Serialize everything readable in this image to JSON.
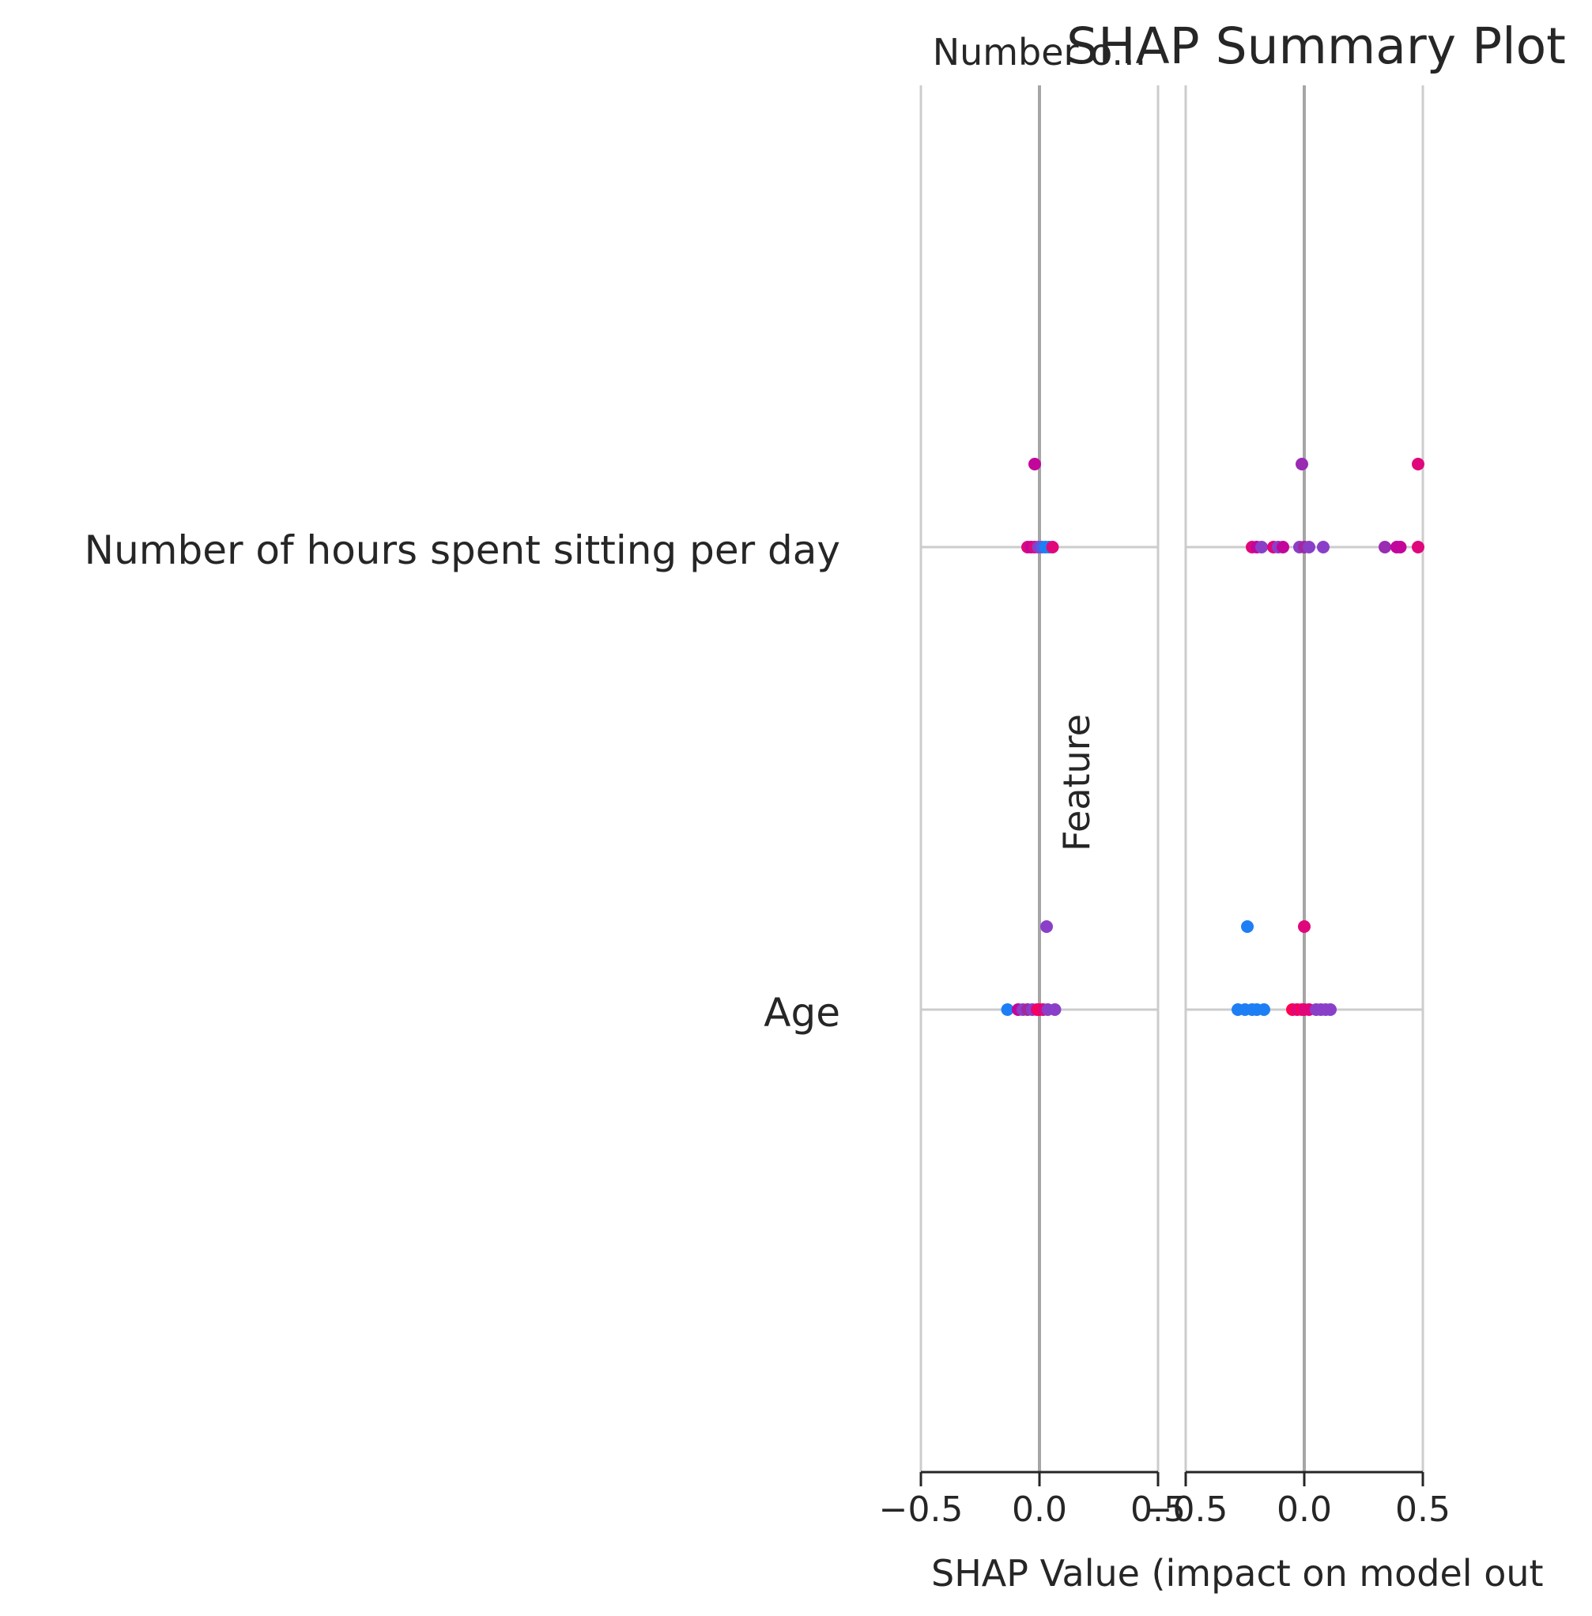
{
  "chart_data": {
    "type": "scatter",
    "title": "SHAP Summary Plot",
    "panel_titles": [
      "Number o...",
      ""
    ],
    "xlabel": "SHAP Value (impact on model out",
    "ylabel": "Feature",
    "features": [
      "Number of hours spent sitting per day",
      "Age"
    ],
    "xlim": [
      -0.5,
      0.5
    ],
    "xticks": [
      -0.5,
      0.0,
      0.5
    ],
    "xtick_labels": [
      "−0.5",
      "0.0",
      "0.5"
    ],
    "grid": true,
    "panels": [
      {
        "points": [
          {
            "feature": "Number of hours spent sitting per day",
            "x": -0.02,
            "offset": 1,
            "color": "#c2069b"
          },
          {
            "feature": "Number of hours spent sitting per day",
            "x": -0.05,
            "offset": 0,
            "color": "#e0077c"
          },
          {
            "feature": "Number of hours spent sitting per day",
            "x": -0.035,
            "offset": 0,
            "color": "#c2069b"
          },
          {
            "feature": "Number of hours spent sitting per day",
            "x": -0.02,
            "offset": 0,
            "color": "#e0077c"
          },
          {
            "feature": "Number of hours spent sitting per day",
            "x": -0.005,
            "offset": 0,
            "color": "#8a3fc9"
          },
          {
            "feature": "Number of hours spent sitting per day",
            "x": 0.01,
            "offset": 0,
            "color": "#5b5be0"
          },
          {
            "feature": "Number of hours spent sitting per day",
            "x": 0.025,
            "offset": 0,
            "color": "#1e7ff5"
          },
          {
            "feature": "Number of hours spent sitting per day",
            "x": 0.04,
            "offset": 0,
            "color": "#1e7ff5"
          },
          {
            "feature": "Number of hours spent sitting per day",
            "x": 0.055,
            "offset": 0,
            "color": "#e0077c"
          },
          {
            "feature": "Age",
            "x": 0.03,
            "offset": 1,
            "color": "#8a3fc9"
          },
          {
            "feature": "Age",
            "x": -0.135,
            "offset": 0,
            "color": "#1e7ff5"
          },
          {
            "feature": "Age",
            "x": -0.09,
            "offset": 0,
            "color": "#c2069b"
          },
          {
            "feature": "Age",
            "x": -0.07,
            "offset": 0,
            "color": "#8a3fc9"
          },
          {
            "feature": "Age",
            "x": -0.05,
            "offset": 0,
            "color": "#a3289f"
          },
          {
            "feature": "Age",
            "x": -0.03,
            "offset": 0,
            "color": "#8a3fc9"
          },
          {
            "feature": "Age",
            "x": -0.01,
            "offset": 0,
            "color": "#e0077c"
          },
          {
            "feature": "Age",
            "x": 0.0,
            "offset": 0,
            "color": "#ff0052"
          },
          {
            "feature": "Age",
            "x": 0.015,
            "offset": 0,
            "color": "#e0077c"
          },
          {
            "feature": "Age",
            "x": 0.035,
            "offset": 0,
            "color": "#8a3fc9"
          },
          {
            "feature": "Age",
            "x": 0.065,
            "offset": 0,
            "color": "#8a3fc9"
          }
        ]
      },
      {
        "points": [
          {
            "feature": "Number of hours spent sitting per day",
            "x": -0.01,
            "offset": 1,
            "color": "#9a2bb3"
          },
          {
            "feature": "Number of hours spent sitting per day",
            "x": 0.48,
            "offset": 1,
            "color": "#e0077c"
          },
          {
            "feature": "Number of hours spent sitting per day",
            "x": -0.22,
            "offset": 0,
            "color": "#e0077c"
          },
          {
            "feature": "Number of hours spent sitting per day",
            "x": -0.2,
            "offset": 0,
            "color": "#c2069b"
          },
          {
            "feature": "Number of hours spent sitting per day",
            "x": -0.18,
            "offset": 0,
            "color": "#8a3fc9"
          },
          {
            "feature": "Number of hours spent sitting per day",
            "x": -0.13,
            "offset": 0,
            "color": "#e0077c"
          },
          {
            "feature": "Number of hours spent sitting per day",
            "x": -0.11,
            "offset": 0,
            "color": "#8a3fc9"
          },
          {
            "feature": "Number of hours spent sitting per day",
            "x": -0.09,
            "offset": 0,
            "color": "#c2069b"
          },
          {
            "feature": "Number of hours spent sitting per day",
            "x": -0.02,
            "offset": 0,
            "color": "#8a3fc9"
          },
          {
            "feature": "Number of hours spent sitting per day",
            "x": 0.0,
            "offset": 0,
            "color": "#a3289f"
          },
          {
            "feature": "Number of hours spent sitting per day",
            "x": 0.02,
            "offset": 0,
            "color": "#8a3fc9"
          },
          {
            "feature": "Number of hours spent sitting per day",
            "x": 0.08,
            "offset": 0,
            "color": "#8a3fc9"
          },
          {
            "feature": "Number of hours spent sitting per day",
            "x": 0.34,
            "offset": 0,
            "color": "#9a2bb3"
          },
          {
            "feature": "Number of hours spent sitting per day",
            "x": 0.39,
            "offset": 0,
            "color": "#c2069b"
          },
          {
            "feature": "Number of hours spent sitting per day",
            "x": 0.405,
            "offset": 0,
            "color": "#c2069b"
          },
          {
            "feature": "Number of hours spent sitting per day",
            "x": 0.48,
            "offset": 0,
            "color": "#e0077c"
          },
          {
            "feature": "Age",
            "x": -0.24,
            "offset": 1,
            "color": "#1e7ff5"
          },
          {
            "feature": "Age",
            "x": 0.0,
            "offset": 1,
            "color": "#e0077c"
          },
          {
            "feature": "Age",
            "x": -0.28,
            "offset": 0,
            "color": "#1e7ff5"
          },
          {
            "feature": "Age",
            "x": -0.25,
            "offset": 0,
            "color": "#1e7ff5"
          },
          {
            "feature": "Age",
            "x": -0.22,
            "offset": 0,
            "color": "#1e7ff5"
          },
          {
            "feature": "Age",
            "x": -0.2,
            "offset": 0,
            "color": "#1e7ff5"
          },
          {
            "feature": "Age",
            "x": -0.17,
            "offset": 0,
            "color": "#1e7ff5"
          },
          {
            "feature": "Age",
            "x": -0.05,
            "offset": 0,
            "color": "#ff0052"
          },
          {
            "feature": "Age",
            "x": -0.03,
            "offset": 0,
            "color": "#e0077c"
          },
          {
            "feature": "Age",
            "x": -0.01,
            "offset": 0,
            "color": "#ff0052"
          },
          {
            "feature": "Age",
            "x": 0.0,
            "offset": 0,
            "color": "#e0077c"
          },
          {
            "feature": "Age",
            "x": 0.02,
            "offset": 0,
            "color": "#e0077c"
          },
          {
            "feature": "Age",
            "x": 0.05,
            "offset": 0,
            "color": "#8a3fc9"
          },
          {
            "feature": "Age",
            "x": 0.07,
            "offset": 0,
            "color": "#8a3fc9"
          },
          {
            "feature": "Age",
            "x": 0.09,
            "offset": 0,
            "color": "#8a3fc9"
          },
          {
            "feature": "Age",
            "x": 0.11,
            "offset": 0,
            "color": "#8a3fc9"
          }
        ]
      }
    ]
  },
  "colors": {
    "grid": "#cccccc",
    "zero_line": "#a6a6a6",
    "axis": "#262626"
  }
}
